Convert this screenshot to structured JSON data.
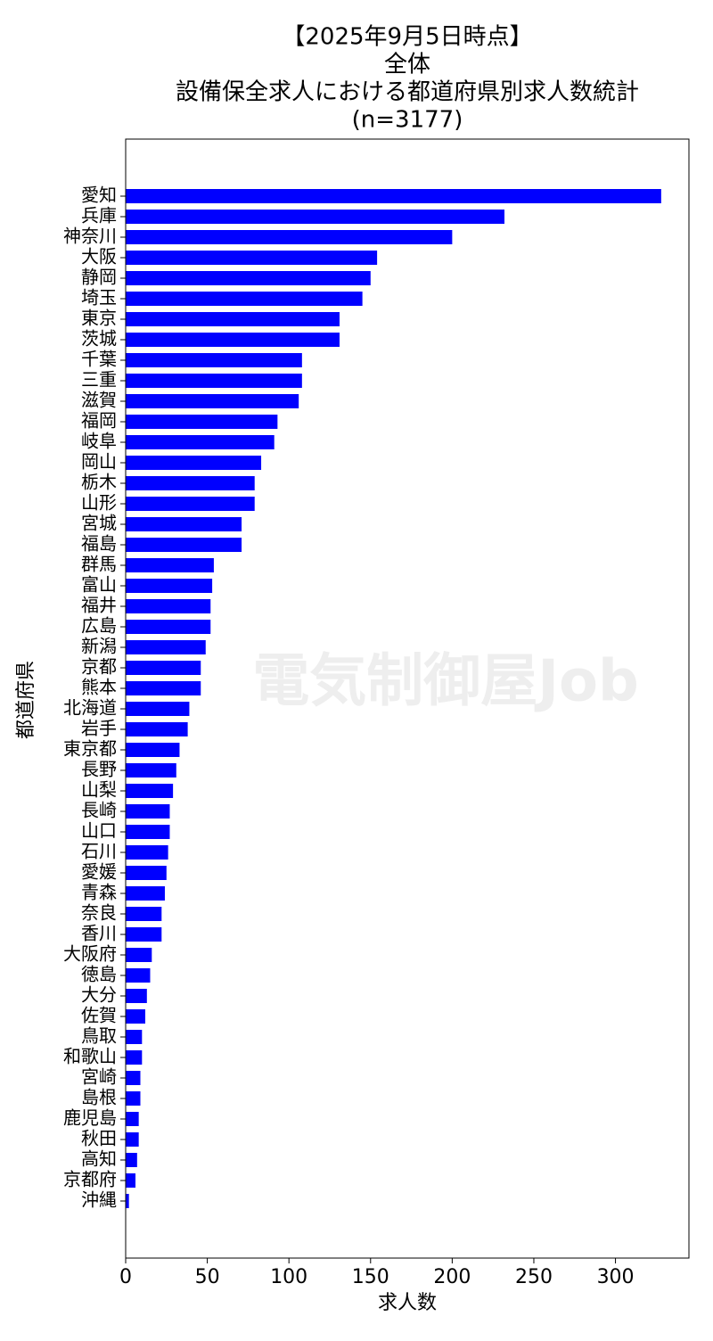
{
  "chart_data": {
    "type": "barh",
    "title": [
      "【2025年9月5日時点】",
      "全体",
      "設備保全求人における都道府県別求人数統計",
      "(n=3177)"
    ],
    "x_label": "求人数",
    "y_label": "都道府県",
    "watermark": "電気制御屋Job",
    "categories": [
      "愛知",
      "兵庫",
      "神奈川",
      "大阪",
      "静岡",
      "埼玉",
      "東京",
      "茨城",
      "千葉",
      "三重",
      "滋賀",
      "福岡",
      "岐阜",
      "岡山",
      "栃木",
      "山形",
      "宮城",
      "福島",
      "群馬",
      "富山",
      "福井",
      "広島",
      "新潟",
      "京都",
      "熊本",
      "北海道",
      "岩手",
      "東京都",
      "長野",
      "山梨",
      "長崎",
      "山口",
      "石川",
      "愛媛",
      "青森",
      "奈良",
      "香川",
      "大阪府",
      "徳島",
      "大分",
      "佐賀",
      "鳥取",
      "和歌山",
      "宮崎",
      "島根",
      "鹿児島",
      "秋田",
      "高知",
      "京都府",
      "沖縄"
    ],
    "values": [
      328,
      232,
      200,
      154,
      150,
      145,
      131,
      131,
      108,
      108,
      106,
      93,
      91,
      83,
      79,
      79,
      71,
      71,
      54,
      53,
      52,
      52,
      49,
      46,
      46,
      39,
      38,
      33,
      31,
      29,
      27,
      27,
      26,
      25,
      24,
      22,
      22,
      16,
      15,
      13,
      12,
      10,
      10,
      9,
      9,
      8,
      8,
      7,
      6,
      2
    ],
    "color": "#0000ff",
    "xlim": [
      0,
      345
    ],
    "xticks": [
      0,
      50,
      100,
      150,
      200,
      250,
      300
    ]
  }
}
